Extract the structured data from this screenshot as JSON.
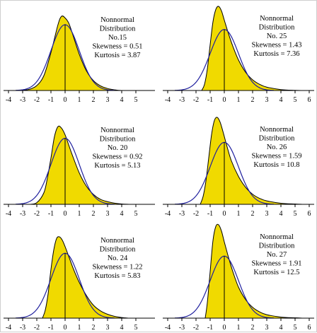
{
  "chart_data": [
    {
      "type": "line",
      "label_lines": [
        "Nonnormal",
        "Distribution",
        "No.15",
        "Skewness = 0.51",
        "Kurtosis = 3.87"
      ],
      "skewness": 0.51,
      "kurtosis": 3.87,
      "xlim": [
        -4,
        5
      ],
      "xticks": [
        "-4",
        "-3",
        "-2",
        "-1",
        "0",
        "1",
        "2",
        "3",
        "4",
        "5"
      ],
      "series": [
        {
          "kind": "nonnormal-filled",
          "x": [
            -3.5,
            -3.0,
            -2.5,
            -2.0,
            -1.5,
            -1.0,
            -0.5,
            -0.25,
            0.0,
            0.25,
            0.5,
            1.0,
            1.5,
            2.0,
            2.5,
            3.0,
            3.5,
            4.0
          ],
          "y": [
            0.0,
            0.002,
            0.008,
            0.03,
            0.09,
            0.23,
            0.4,
            0.45,
            0.44,
            0.41,
            0.35,
            0.22,
            0.12,
            0.06,
            0.028,
            0.012,
            0.004,
            0.0
          ]
        },
        {
          "kind": "normal-curve"
        }
      ]
    },
    {
      "type": "line",
      "label_lines": [
        "Nonnormal",
        "Distribution",
        "No. 25",
        "Skewness = 1.43",
        "Kurtosis = 7.36"
      ],
      "skewness": 1.43,
      "kurtosis": 7.36,
      "xlim": [
        -4,
        6
      ],
      "xticks": [
        "-4",
        "-3",
        "-2",
        "-1",
        "0",
        "1",
        "2",
        "3",
        "4",
        "5",
        "6"
      ],
      "series": [
        {
          "kind": "nonnormal-filled",
          "x": [
            -1.6,
            -1.4,
            -1.2,
            -1.0,
            -0.8,
            -0.6,
            -0.4,
            -0.2,
            0.0,
            0.3,
            0.6,
            1.0,
            1.5,
            2.0,
            2.5,
            3.0,
            4.0,
            5.0,
            5.5
          ],
          "y": [
            0.0,
            0.04,
            0.14,
            0.3,
            0.45,
            0.53,
            0.55,
            0.52,
            0.46,
            0.37,
            0.29,
            0.2,
            0.12,
            0.07,
            0.04,
            0.022,
            0.006,
            0.001,
            0.0
          ]
        },
        {
          "kind": "normal-curve"
        }
      ]
    },
    {
      "type": "line",
      "label_lines": [
        "Nonnormal",
        "Distribution",
        "No. 20",
        "Skewness = 0.92",
        "Kurtosis = 5.13"
      ],
      "skewness": 0.92,
      "kurtosis": 5.13,
      "xlim": [
        -4,
        5
      ],
      "xticks": [
        "-4",
        "-3",
        "-2",
        "-1",
        "0",
        "1",
        "2",
        "3",
        "4",
        "5"
      ],
      "series": [
        {
          "kind": "nonnormal-filled",
          "x": [
            -2.5,
            -2.0,
            -1.5,
            -1.25,
            -1.0,
            -0.75,
            -0.5,
            -0.25,
            0.0,
            0.25,
            0.5,
            1.0,
            1.5,
            2.0,
            2.5,
            3.0,
            3.5,
            4.0,
            4.5
          ],
          "y": [
            0.0,
            0.01,
            0.07,
            0.16,
            0.28,
            0.41,
            0.47,
            0.46,
            0.42,
            0.36,
            0.3,
            0.19,
            0.11,
            0.06,
            0.03,
            0.016,
            0.007,
            0.002,
            0.0
          ]
        },
        {
          "kind": "normal-curve"
        }
      ]
    },
    {
      "type": "line",
      "label_lines": [
        "Nonnormal",
        "Distribution",
        "No. 26",
        "Skewness = 1.59",
        "Kurtosis = 10.8"
      ],
      "skewness": 1.59,
      "kurtosis": 10.8,
      "xlim": [
        -4,
        6
      ],
      "xticks": [
        "-4",
        "-3",
        "-2",
        "-1",
        "0",
        "1",
        "2",
        "3",
        "4",
        "5",
        "6"
      ],
      "series": [
        {
          "kind": "nonnormal-filled",
          "x": [
            -1.7,
            -1.5,
            -1.3,
            -1.1,
            -0.9,
            -0.7,
            -0.5,
            -0.3,
            -0.1,
            0.2,
            0.5,
            1.0,
            1.5,
            2.0,
            2.5,
            3.0,
            4.0,
            5.0,
            5.5
          ],
          "y": [
            0.0,
            0.05,
            0.15,
            0.3,
            0.45,
            0.54,
            0.56,
            0.53,
            0.47,
            0.37,
            0.28,
            0.18,
            0.11,
            0.065,
            0.038,
            0.022,
            0.007,
            0.002,
            0.0
          ]
        },
        {
          "kind": "normal-curve"
        }
      ]
    },
    {
      "type": "line",
      "label_lines": [
        "Nonnormal",
        "Distribution",
        "No. 24",
        "Skewness = 1.22",
        "Kurtosis = 5.83"
      ],
      "skewness": 1.22,
      "kurtosis": 5.83,
      "xlim": [
        -4,
        5
      ],
      "xticks": [
        "-4",
        "-3",
        "-2",
        "-1",
        "0",
        "1",
        "2",
        "3",
        "4",
        "5"
      ],
      "series": [
        {
          "kind": "nonnormal-filled",
          "x": [
            -1.6,
            -1.4,
            -1.2,
            -1.0,
            -0.8,
            -0.6,
            -0.4,
            -0.2,
            0.0,
            0.3,
            0.6,
            1.0,
            1.5,
            2.0,
            2.5,
            3.0,
            3.5,
            4.0,
            4.5
          ],
          "y": [
            0.0,
            0.05,
            0.15,
            0.3,
            0.42,
            0.49,
            0.5,
            0.48,
            0.44,
            0.37,
            0.3,
            0.22,
            0.14,
            0.08,
            0.045,
            0.024,
            0.011,
            0.004,
            0.0
          ]
        },
        {
          "kind": "normal-curve"
        }
      ]
    },
    {
      "type": "line",
      "label_lines": [
        "Nonnormal",
        "Distribution",
        "No. 27",
        "Skewness = 1.91",
        "Kurtosis = 12.5"
      ],
      "skewness": 1.91,
      "kurtosis": 12.5,
      "xlim": [
        -4,
        6
      ],
      "xticks": [
        "-4",
        "-3",
        "-2",
        "-1",
        "0",
        "1",
        "2",
        "3",
        "4",
        "5",
        "6"
      ],
      "series": [
        {
          "kind": "nonnormal-filled",
          "x": [
            -1.35,
            -1.2,
            -1.0,
            -0.8,
            -0.6,
            -0.4,
            -0.2,
            0.0,
            0.3,
            0.6,
            1.0,
            1.5,
            2.0,
            2.5,
            3.0,
            4.0,
            5.0,
            5.5
          ],
          "y": [
            0.0,
            0.1,
            0.3,
            0.5,
            0.59,
            0.6,
            0.56,
            0.49,
            0.39,
            0.3,
            0.2,
            0.12,
            0.07,
            0.04,
            0.022,
            0.007,
            0.002,
            0.0
          ]
        },
        {
          "kind": "normal-curve"
        }
      ]
    }
  ],
  "colors": {
    "fill": "#f0da00",
    "outline": "#000000",
    "normal": "#1f1f9e"
  }
}
